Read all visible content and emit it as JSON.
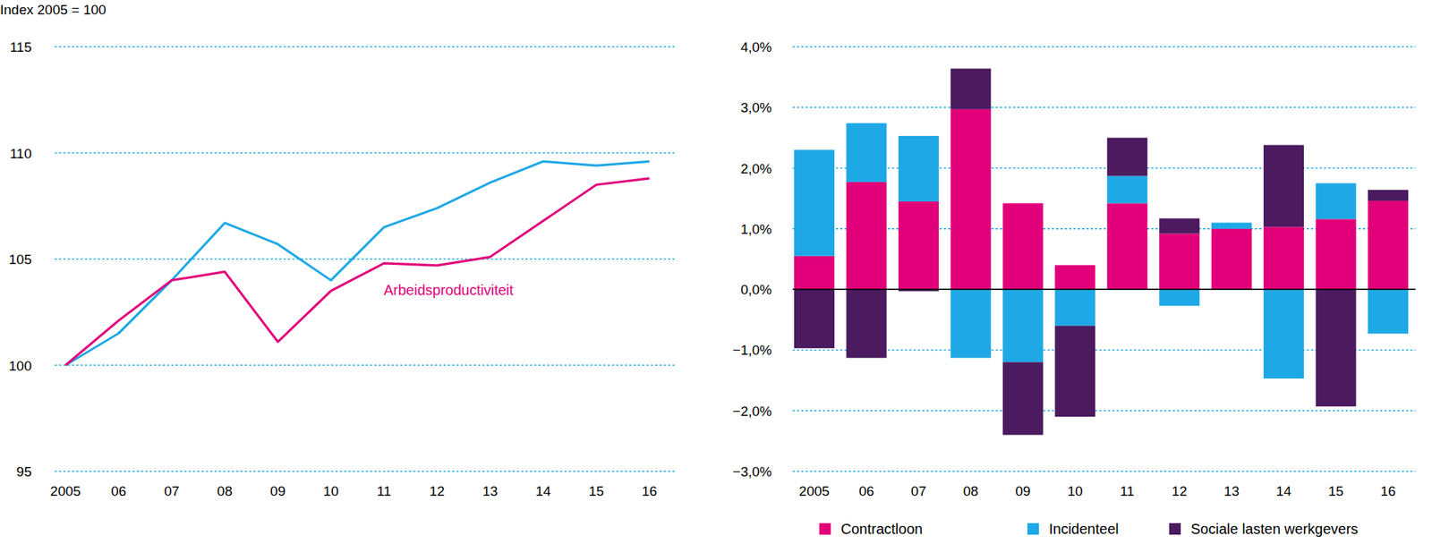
{
  "chart_data": [
    {
      "type": "line",
      "y_label": "Index 2005 = 100",
      "categories": [
        "2005",
        "06",
        "07",
        "08",
        "09",
        "10",
        "11",
        "12",
        "13",
        "14",
        "15",
        "16"
      ],
      "series": [
        {
          "color": "#1fa8e6",
          "values": [
            100,
            101.5,
            104,
            106.7,
            105.7,
            104,
            106.5,
            107.4,
            108.6,
            109.6,
            109.4,
            109.6
          ]
        },
        {
          "name": "Arbeidsproductiviteit",
          "color": "#e2007a",
          "values": [
            100,
            102.1,
            104,
            104.4,
            101.1,
            103.5,
            104.8,
            104.7,
            105.1,
            106.8,
            108.5,
            108.8
          ]
        }
      ],
      "ylim": [
        95,
        115
      ],
      "yticks": [
        95,
        100,
        105,
        110,
        115
      ],
      "grid": true
    },
    {
      "type": "bar",
      "stacked": true,
      "categories": [
        "2005",
        "06",
        "07",
        "08",
        "09",
        "10",
        "11",
        "12",
        "13",
        "14",
        "15",
        "16"
      ],
      "series": [
        {
          "name": "Contractloon",
          "color": "#e2007a",
          "values": [
            0.55,
            1.77,
            1.45,
            2.97,
            1.42,
            0.4,
            1.42,
            0.92,
            1.0,
            1.03,
            1.16,
            1.46
          ]
        },
        {
          "name": "Incidenteel",
          "color": "#1fa8e6",
          "values": [
            1.75,
            0.97,
            1.08,
            -1.13,
            -1.2,
            -0.6,
            0.45,
            -0.27,
            0.1,
            -1.47,
            0.59,
            -0.73
          ]
        },
        {
          "name": "Sociale lasten werkgevers",
          "color": "#4b1a5f",
          "values": [
            -0.97,
            -1.13,
            -0.03,
            0.67,
            -1.2,
            -1.5,
            0.63,
            0.25,
            0,
            1.35,
            -1.93,
            0.18
          ]
        }
      ],
      "ylim": [
        -3,
        4
      ],
      "yticks": [
        {
          "value": -3,
          "label": "−3,0%"
        },
        {
          "value": -2,
          "label": "−2,0%"
        },
        {
          "value": -1,
          "label": "−1,0%"
        },
        {
          "value": 0,
          "label": "0,0%"
        },
        {
          "value": 1,
          "label": "1,0%"
        },
        {
          "value": 2,
          "label": "2,0%"
        },
        {
          "value": 3,
          "label": "3,0%"
        },
        {
          "value": 4,
          "label": "4,0%"
        }
      ],
      "grid": true,
      "legend": "bottom"
    }
  ]
}
